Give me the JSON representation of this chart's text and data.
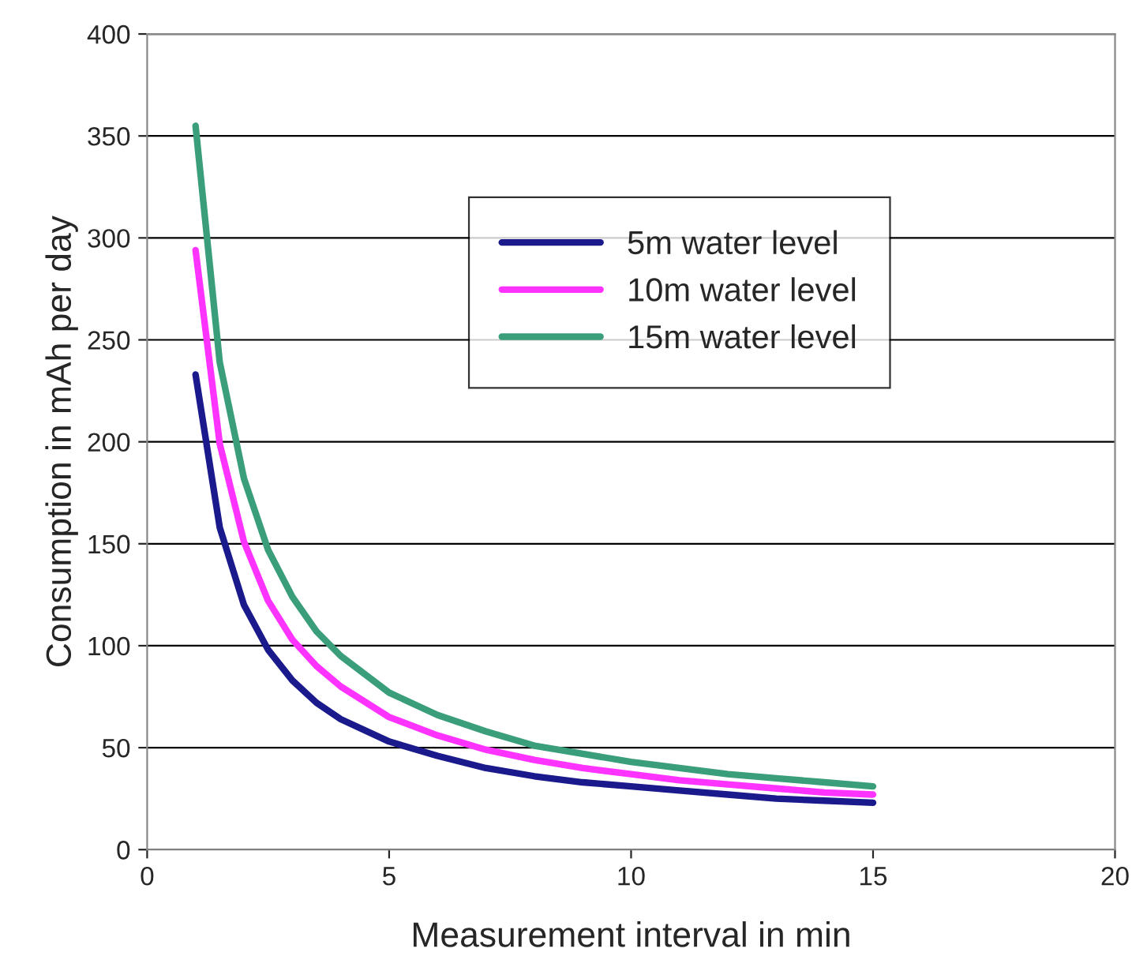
{
  "chart_data": {
    "type": "line",
    "xlabel": "Measurement interval in min",
    "ylabel": "Consumption in mAh per day",
    "x": [
      1,
      1.5,
      2,
      2.5,
      3,
      3.5,
      4,
      5,
      6,
      7,
      8,
      9,
      10,
      11,
      12,
      13,
      14,
      15
    ],
    "series": [
      {
        "name": "5m water level",
        "color": "#1a1a8c",
        "values": [
          233,
          158,
          120,
          98,
          83,
          72,
          64,
          53,
          46,
          40,
          36,
          33,
          31,
          29,
          27,
          25,
          24,
          23
        ]
      },
      {
        "name": "10m water level",
        "color": "#ff33ff",
        "values": [
          294,
          199,
          151,
          122,
          103,
          90,
          80,
          65,
          56,
          49,
          44,
          40,
          37,
          34,
          32,
          30,
          28,
          27
        ]
      },
      {
        "name": "15m water level",
        "color": "#3a9e7a",
        "values": [
          355,
          239,
          182,
          147,
          124,
          107,
          95,
          77,
          66,
          58,
          51,
          47,
          43,
          40,
          37,
          35,
          33,
          31
        ]
      }
    ],
    "xlim": [
      0,
      20
    ],
    "xticks": [
      0,
      5,
      10,
      15,
      20
    ],
    "ylim": [
      0,
      400
    ],
    "yticks": [
      0,
      50,
      100,
      150,
      200,
      250,
      300,
      350,
      400
    ],
    "grid": "y",
    "legend": "top",
    "marker": "none",
    "line_style": "solid"
  }
}
